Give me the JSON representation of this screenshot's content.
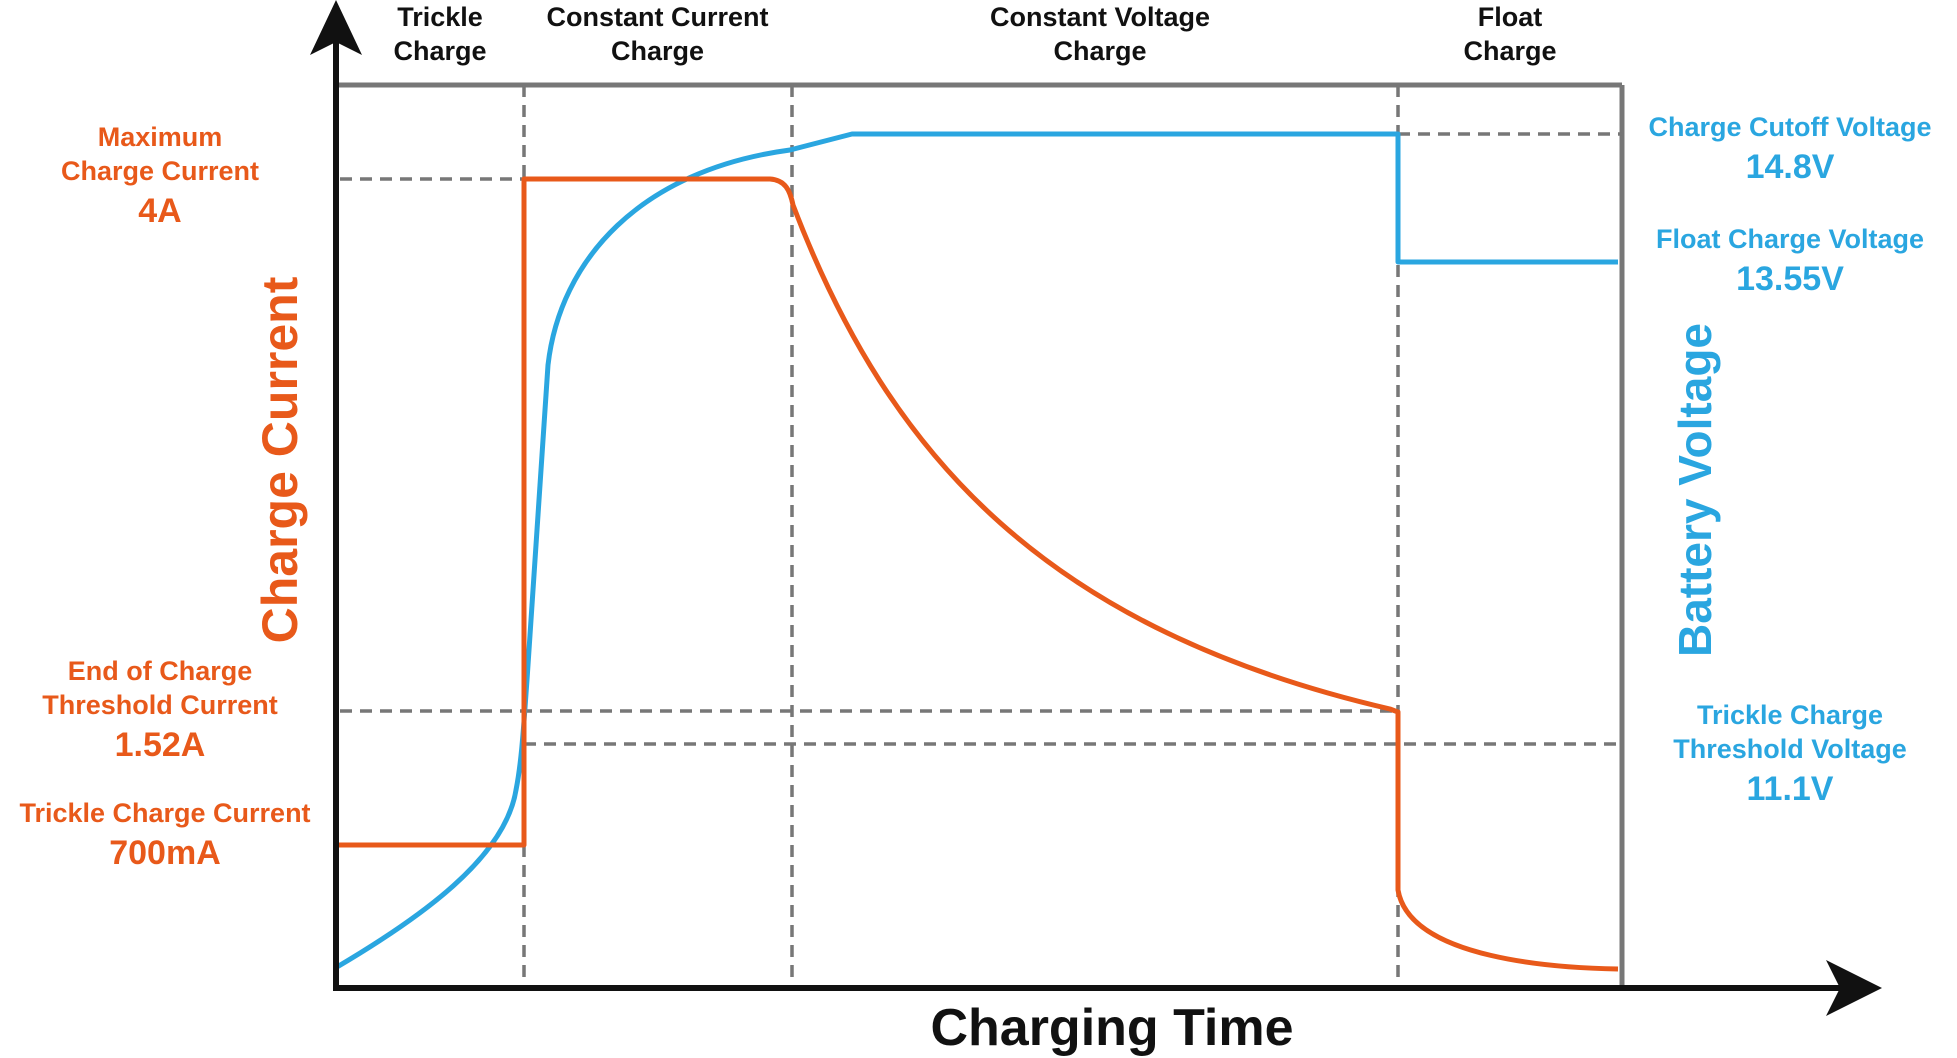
{
  "chart_data": {
    "type": "line",
    "xlabel": "Charging Time",
    "ylabel_left": "Charge Current",
    "ylabel_right": "Battery Voltage",
    "phases": [
      {
        "id": "trickle",
        "label_line1": "Trickle",
        "label_line2": "Charge"
      },
      {
        "id": "cc",
        "label_line1": "Constant Current",
        "label_line2": "Charge"
      },
      {
        "id": "cv",
        "label_line1": "Constant Voltage",
        "label_line2": "Charge"
      },
      {
        "id": "float",
        "label_line1": "Float",
        "label_line2": "Charge"
      }
    ],
    "current_levels": [
      {
        "id": "max",
        "line1": "Maximum",
        "line2": "Charge Current",
        "value": "4A"
      },
      {
        "id": "end",
        "line1": "End of Charge",
        "line2": "Threshold Current",
        "value": "1.52A"
      },
      {
        "id": "trickle",
        "line1": "Trickle Charge Current",
        "line2": "",
        "value": "700mA"
      }
    ],
    "voltage_levels": [
      {
        "id": "cutoff",
        "line1": "Charge Cutoff Voltage",
        "line2": "",
        "value": "14.8V"
      },
      {
        "id": "float",
        "line1": "Float Charge Voltage",
        "line2": "",
        "value": "13.55V"
      },
      {
        "id": "trickle",
        "line1": "Trickle Charge",
        "line2": "Threshold Voltage",
        "value": "11.1V"
      }
    ],
    "series": [
      {
        "name": "Charge Current",
        "color": "#e8591a"
      },
      {
        "name": "Battery Voltage",
        "color": "#2aa6e0"
      }
    ],
    "colors": {
      "current": "#e8591a",
      "voltage": "#2aa6e0",
      "guides": "#777777",
      "axis": "#111111"
    }
  }
}
